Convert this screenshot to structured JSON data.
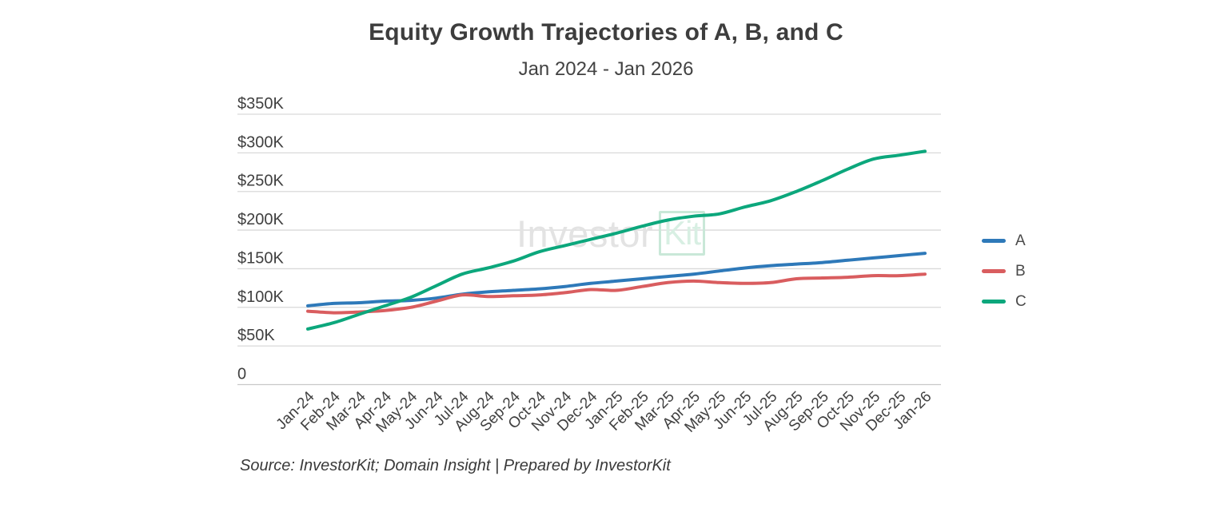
{
  "chart_data": {
    "type": "line",
    "title": "Equity Growth Trajectories of A, B, and C",
    "subtitle": "Jan 2024 - Jan 2026",
    "y_unit": "$K",
    "ylim": [
      0,
      350
    ],
    "grid": "horizontal",
    "legend_position": "right",
    "categories": [
      "Jan-24",
      "Feb-24",
      "Mar-24",
      "Apr-24",
      "May-24",
      "Jun-24",
      "Jul-24",
      "Aug-24",
      "Sep-24",
      "Oct-24",
      "Nov-24",
      "Dec-24",
      "Jan-25",
      "Feb-25",
      "Mar-25",
      "Apr-25",
      "May-25",
      "Jun-25",
      "Jul-25",
      "Aug-25",
      "Sep-25",
      "Oct-25",
      "Nov-25",
      "Dec-25",
      "Jan-26"
    ],
    "y_ticks": [
      {
        "label": "$350K",
        "value": 350
      },
      {
        "label": "$300K",
        "value": 300
      },
      {
        "label": "$250K",
        "value": 250
      },
      {
        "label": "$200K",
        "value": 200
      },
      {
        "label": "$150K",
        "value": 150
      },
      {
        "label": "$100K",
        "value": 100
      },
      {
        "label": "$50K",
        "value": 50
      },
      {
        "label": "0",
        "value": 0
      }
    ],
    "series": [
      {
        "name": "A",
        "color": "#2e79b9",
        "values": [
          102,
          105,
          106,
          108,
          109,
          112,
          117,
          120,
          122,
          124,
          127,
          131,
          134,
          137,
          140,
          143,
          147,
          151,
          154,
          156,
          158,
          161,
          164,
          167,
          170
        ]
      },
      {
        "name": "B",
        "color": "#d95d5f",
        "values": [
          95,
          93,
          94,
          96,
          100,
          108,
          116,
          114,
          115,
          116,
          119,
          123,
          122,
          127,
          132,
          134,
          132,
          131,
          132,
          137,
          138,
          139,
          141,
          141,
          143
        ]
      },
      {
        "name": "C",
        "color": "#0ca77c",
        "values": [
          72,
          80,
          91,
          102,
          113,
          128,
          143,
          151,
          160,
          172,
          180,
          188,
          196,
          205,
          213,
          218,
          221,
          230,
          238,
          250,
          264,
          279,
          292,
          297,
          302
        ]
      }
    ],
    "watermark": {
      "prefix": "Investor",
      "boxed": "Kit"
    },
    "source_note": "Source: InvestorKit; Domain Insight | Prepared by InvestorKit",
    "style": {
      "grid_color": "#d9d9d9",
      "baseline_color": "#c9c9c9",
      "axis_text_color": "#404040",
      "line_width": 4
    }
  }
}
